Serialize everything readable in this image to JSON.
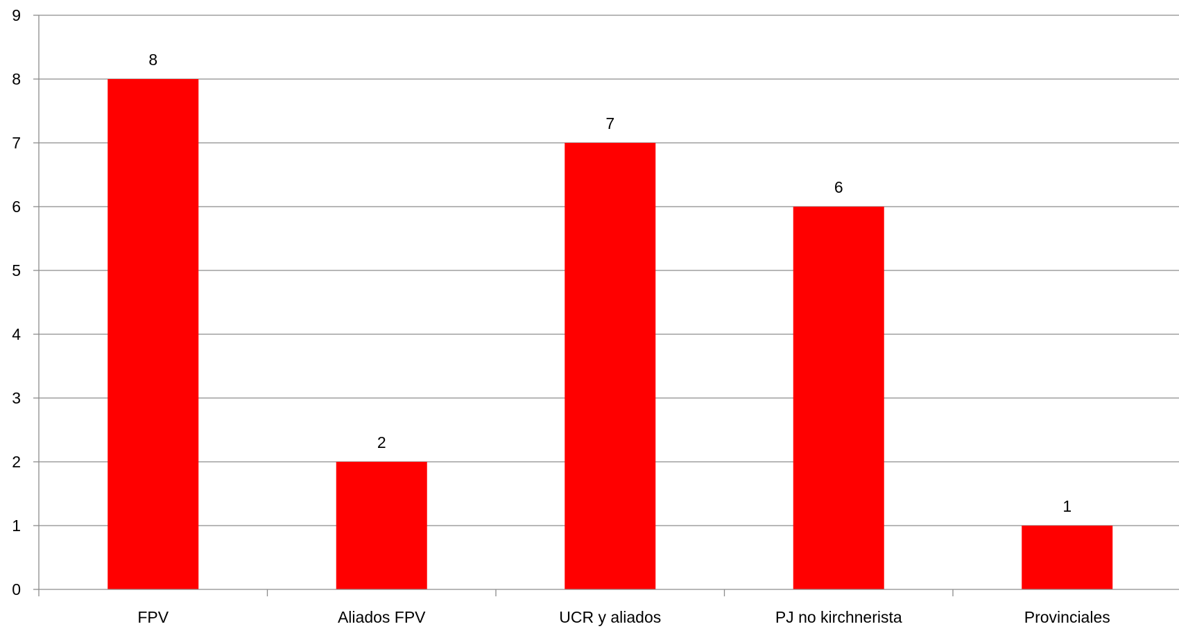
{
  "chart_data": {
    "type": "bar",
    "categories": [
      "FPV",
      "Aliados FPV",
      "UCR y aliados",
      "PJ no kirchnerista",
      "Provinciales"
    ],
    "values": [
      8,
      2,
      7,
      6,
      1
    ],
    "data_labels": [
      "8",
      "2",
      "7",
      "6",
      "1"
    ],
    "title": "",
    "xlabel": "",
    "ylabel": "",
    "ylim": [
      0,
      9
    ],
    "yticks": [
      0,
      1,
      2,
      3,
      4,
      5,
      6,
      7,
      8,
      9
    ],
    "grid": true,
    "legend": "none",
    "bar_color": "#ff0000"
  }
}
